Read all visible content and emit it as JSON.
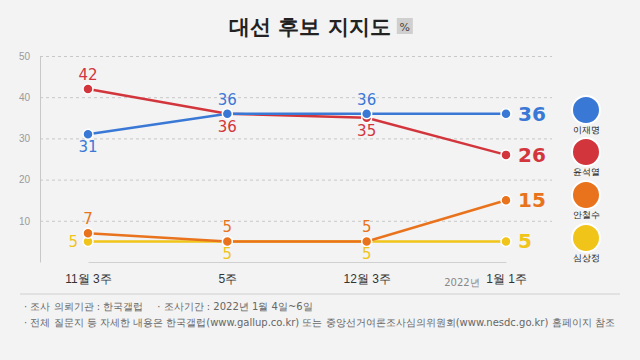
{
  "chart_data": {
    "type": "line",
    "title": "대선 후보 지지도",
    "unit": "%",
    "categories": [
      "11월 3주",
      "5주",
      "12월 3주",
      "1월 1주"
    ],
    "annotations": [
      "2022년"
    ],
    "series": [
      {
        "name": "이재명",
        "color": "#3a78d6",
        "values": [
          31,
          36,
          36,
          36
        ]
      },
      {
        "name": "윤석열",
        "color": "#d2363c",
        "values": [
          42,
          36,
          35,
          26
        ]
      },
      {
        "name": "안철수",
        "color": "#e8731c",
        "values": [
          7,
          5,
          5,
          15
        ]
      },
      {
        "name": "심상정",
        "color": "#f0c419",
        "values": [
          5,
          5,
          5,
          5
        ]
      }
    ],
    "ylim": [
      0,
      50
    ],
    "yticks": [
      10,
      20,
      30,
      40,
      50
    ],
    "grid": true,
    "data_labels": true,
    "legend": "right",
    "marker": "circle",
    "notes": [
      "· 조사 의뢰기관 : 한국갤럽",
      "· 조사기간 : 2022년 1월 4일~6일",
      "· 전체 질문지 등 자세한 내용은 한국갤럽(www.gallup.co.kr) 또는 중앙선거여론조사심의위원회(www.nesdc.go.kr) 홈페이지 참조"
    ]
  }
}
